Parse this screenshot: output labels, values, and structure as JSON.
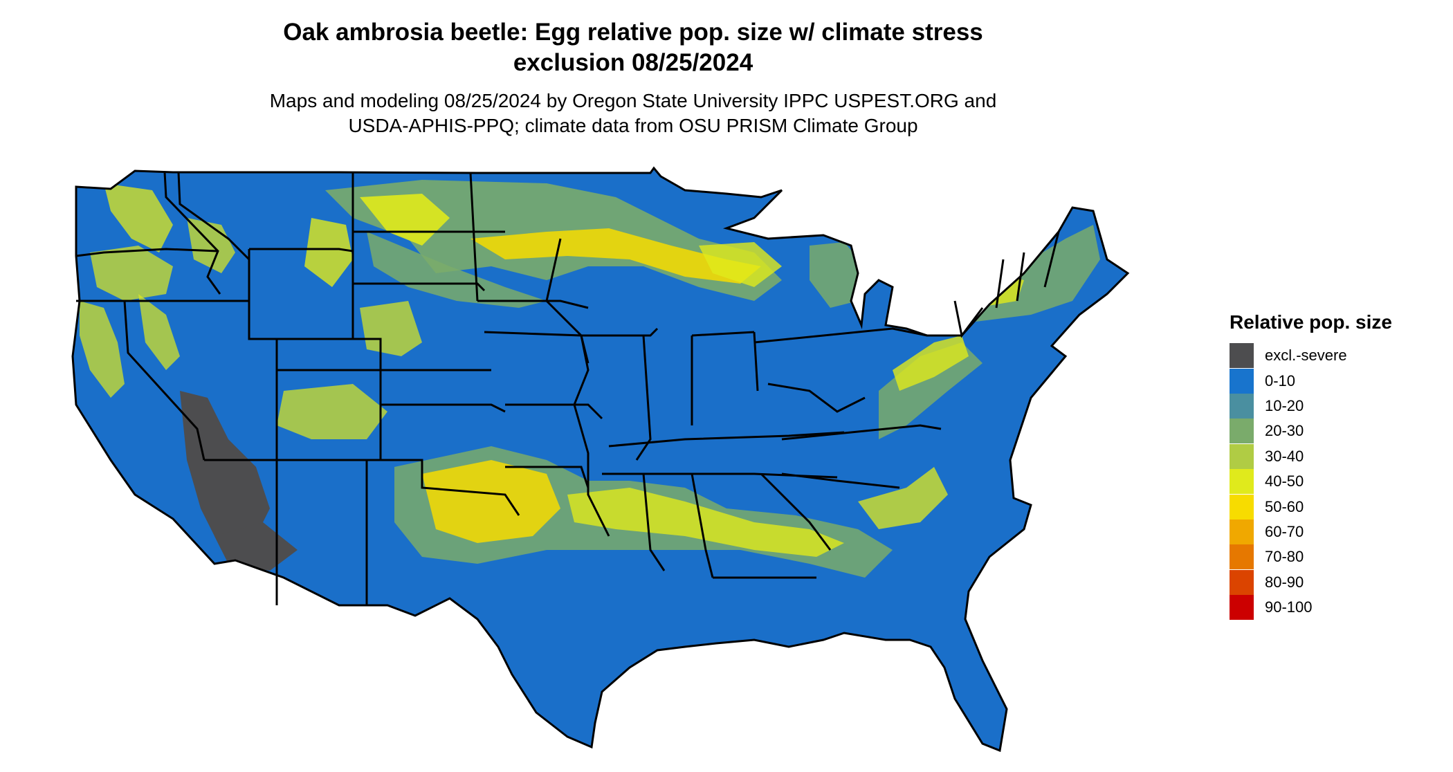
{
  "title_line1": "Oak ambrosia beetle: Egg relative pop. size w/ climate stress",
  "title_line2": "exclusion 08/25/2024",
  "subtitle_line1": "Maps and modeling 08/25/2024 by Oregon State University IPPC USPEST.ORG and",
  "subtitle_line2": "USDA-APHIS-PPQ; climate data from OSU PRISM Climate Group",
  "legend": {
    "title": "Relative pop. size",
    "items": [
      {
        "label": "excl.-severe",
        "color": "#4d4d4f"
      },
      {
        "label": "0-10",
        "color": "#1874cd"
      },
      {
        "label": "10-20",
        "color": "#4a8fa0"
      },
      {
        "label": "20-30",
        "color": "#7aab6b"
      },
      {
        "label": "30-40",
        "color": "#b0cc44"
      },
      {
        "label": "40-50",
        "color": "#e0ea1c"
      },
      {
        "label": "50-60",
        "color": "#f7dc00"
      },
      {
        "label": "60-70",
        "color": "#f0a800"
      },
      {
        "label": "70-80",
        "color": "#e67800"
      },
      {
        "label": "80-90",
        "color": "#db4400"
      },
      {
        "label": "90-100",
        "color": "#cc0000"
      }
    ]
  }
}
